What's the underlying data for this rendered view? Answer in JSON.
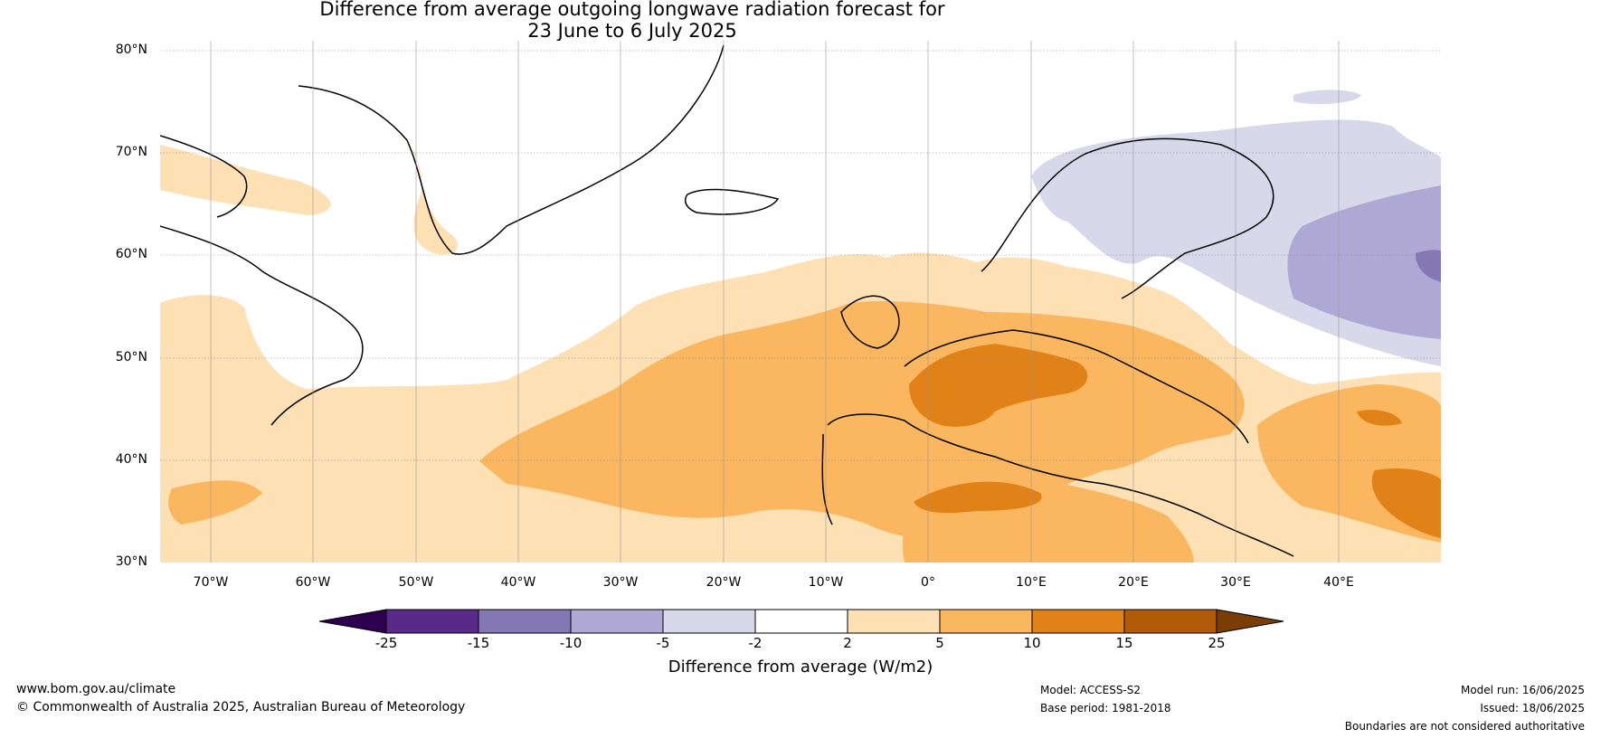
{
  "title": {
    "line1": "Difference from average outgoing longwave radiation forecast for",
    "line2": "23 June to 6 July 2025"
  },
  "axes": {
    "lat_labels": [
      "80°N",
      "70°N",
      "60°N",
      "50°N",
      "40°N",
      "30°N"
    ],
    "lon_labels": [
      "70°W",
      "60°W",
      "50°W",
      "40°W",
      "30°W",
      "20°W",
      "10°W",
      "0°",
      "10°E",
      "20°E",
      "30°E",
      "40°E"
    ]
  },
  "map": {
    "region": "North Atlantic and Europe",
    "lon_range": [
      -75,
      50
    ],
    "lat_range": [
      30,
      81
    ],
    "gridlines": true,
    "anomaly_zones": [
      {
        "area": "Western & Central Europe",
        "category": "10 to 15"
      },
      {
        "area": "Central North Atlantic",
        "category": "5 to 10"
      },
      {
        "area": "North Africa & Mediterranean",
        "category": "5 to 10"
      },
      {
        "area": "Scandinavia",
        "category": "-5 to -2"
      },
      {
        "area": "Western Russia",
        "category": "-10 to -5"
      }
    ]
  },
  "colorbar": {
    "title": "Difference from average (W/m2)",
    "tick_labels": [
      "-25",
      "-15",
      "-10",
      "-5",
      "-2",
      "2",
      "5",
      "10",
      "15",
      "25"
    ],
    "colors": [
      "#2d0050",
      "#5a2a8a",
      "#8478b4",
      "#b0a8d4",
      "#d8d8ea",
      "#ffffff",
      "#fde0b4",
      "#fbb660",
      "#e08218",
      "#b05a0a",
      "#7a3e05"
    ]
  },
  "footer": {
    "website": "www.bom.gov.au/climate",
    "copyright": "© Commonwealth of Australia 2025, Australian Bureau of Meteorology",
    "model": "Model: ACCESS-S2",
    "base_period": "Base period: 1981-2018",
    "model_run": "Model run: 16/06/2025",
    "issued": "Issued: 18/06/2025",
    "disclaimer": "Boundaries are not considered authoritative"
  }
}
